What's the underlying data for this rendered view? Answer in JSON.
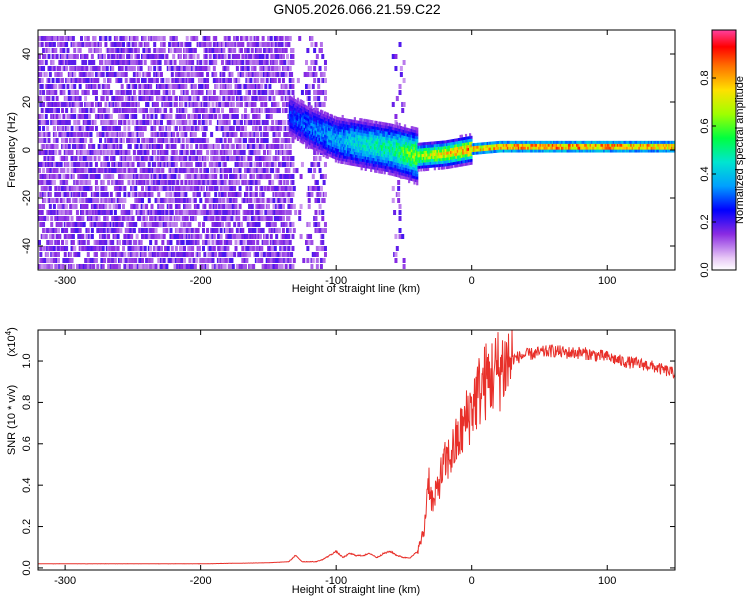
{
  "title": "GN05.2026.066.21.59.C22",
  "chart_data": [
    {
      "type": "heatmap",
      "title": "GN05.2026.066.21.59.C22",
      "xlabel": "Height of straight line (km)",
      "ylabel": "Frequency (Hz)",
      "xlim": [
        -320,
        150
      ],
      "ylim": [
        -50,
        50
      ],
      "xticks": [
        -300,
        -200,
        -100,
        0,
        100
      ],
      "xtick_labels": [
        "-300",
        "-200",
        "-100",
        "0",
        "100"
      ],
      "yticks": [
        -40,
        -20,
        0,
        20,
        40
      ],
      "ytick_labels": [
        "-40",
        "-20",
        "0",
        "20",
        "40"
      ],
      "colorbar": {
        "label": "Normalized spectral amplitude",
        "range": [
          0,
          1
        ],
        "ticks": [
          0.0,
          0.2,
          0.4,
          0.6,
          0.8
        ],
        "tick_labels": [
          "0.0",
          "0.2",
          "0.4",
          "0.6",
          "0.8"
        ]
      },
      "ridge": {
        "x": [
          -135,
          -120,
          -100,
          -80,
          -60,
          -40,
          -20,
          0,
          20,
          50,
          100,
          150
        ],
        "freq": [
          15,
          10,
          5,
          3,
          1,
          -2,
          -1,
          1,
          2,
          2,
          2,
          2
        ],
        "amplitude": [
          0.3,
          0.35,
          0.4,
          0.5,
          0.55,
          0.7,
          0.8,
          0.9,
          0.95,
          0.97,
          0.95,
          0.9
        ]
      }
    },
    {
      "type": "line",
      "xlabel": "Height of straight line (km)",
      "ylabel": "SNR (10 * v/v)",
      "y_multiplier": "(x10",
      "y_multiplier_exp": "4",
      "y_multiplier_close": ")",
      "xlim": [
        -320,
        150
      ],
      "ylim": [
        -0.01,
        1.15
      ],
      "xticks": [
        -300,
        -200,
        -100,
        0,
        100
      ],
      "xtick_labels": [
        "-300",
        "-200",
        "-100",
        "0",
        "100"
      ],
      "yticks": [
        0.0,
        0.2,
        0.4,
        0.6,
        0.8,
        1.0
      ],
      "ytick_labels": [
        "0.0",
        "0.2",
        "0.4",
        "0.6",
        "0.8",
        "1.0"
      ],
      "color": "#e8302a",
      "series": [
        {
          "name": "SNR",
          "x": [
            -320,
            -250,
            -200,
            -150,
            -135,
            -130,
            -125,
            -115,
            -110,
            -105,
            -100,
            -95,
            -90,
            -85,
            -80,
            -75,
            -70,
            -65,
            -60,
            -55,
            -50,
            -45,
            -40,
            -35,
            -32,
            -30,
            -28,
            -25,
            -20,
            -15,
            -10,
            -5,
            0,
            5,
            10,
            15,
            20,
            30,
            40,
            50,
            60,
            70,
            80,
            90,
            100,
            110,
            120,
            130,
            140,
            150
          ],
          "values": [
            0.02,
            0.02,
            0.02,
            0.025,
            0.03,
            0.06,
            0.03,
            0.03,
            0.04,
            0.06,
            0.08,
            0.05,
            0.07,
            0.06,
            0.06,
            0.07,
            0.05,
            0.07,
            0.08,
            0.06,
            0.05,
            0.05,
            0.08,
            0.18,
            0.45,
            0.35,
            0.3,
            0.4,
            0.5,
            0.55,
            0.62,
            0.7,
            0.78,
            0.85,
            0.9,
            0.93,
            0.96,
            1.01,
            1.03,
            1.04,
            1.05,
            1.04,
            1.04,
            1.03,
            1.02,
            1.0,
            0.99,
            0.98,
            0.96,
            0.94
          ]
        }
      ]
    }
  ]
}
